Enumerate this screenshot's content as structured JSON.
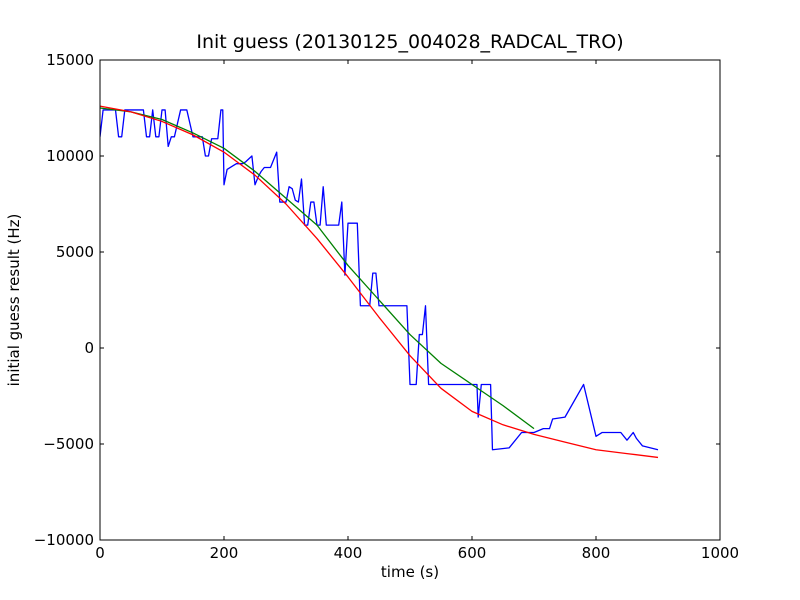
{
  "chart_data": {
    "type": "line",
    "title": "Init guess (20130125_004028_RADCAL_TRO)",
    "xlabel": "time (s)",
    "ylabel": "initial guess result (Hz)",
    "xlim": [
      0,
      1000
    ],
    "ylim": [
      -10000,
      15000
    ],
    "xticks": [
      0,
      200,
      400,
      600,
      800,
      1000
    ],
    "yticks": [
      -10000,
      -5000,
      0,
      5000,
      10000,
      15000
    ],
    "xtick_labels": [
      "0",
      "200",
      "400",
      "600",
      "800",
      "1000"
    ],
    "ytick_labels": [
      "−10000",
      "−5000",
      "0",
      "5000",
      "10000",
      "15000"
    ],
    "grid": false,
    "series": [
      {
        "color": "#0000ff",
        "x": [
          0,
          5,
          25,
          30,
          35,
          40,
          45,
          65,
          70,
          75,
          80,
          85,
          90,
          95,
          100,
          105,
          110,
          115,
          120,
          130,
          140,
          150,
          155,
          165,
          170,
          175,
          180,
          185,
          190,
          195,
          198,
          200,
          205,
          215,
          220,
          230,
          235,
          245,
          250,
          255,
          260,
          265,
          270,
          275,
          285,
          290,
          295,
          300,
          305,
          310,
          315,
          320,
          325,
          330,
          335,
          340,
          345,
          350,
          355,
          360,
          365,
          370,
          375,
          380,
          385,
          390,
          395,
          400,
          405,
          410,
          415,
          420,
          425,
          430,
          435,
          440,
          445,
          450,
          455,
          460,
          465,
          470,
          475,
          480,
          495,
          500,
          505,
          510,
          515,
          520,
          525,
          530,
          555,
          575,
          600,
          605,
          608,
          610,
          615,
          630,
          633,
          660,
          680,
          700,
          715,
          725,
          730,
          750,
          780,
          800,
          810,
          835,
          840,
          850,
          860,
          865,
          875,
          900
        ],
        "y": [
          11000,
          12400,
          12400,
          11000,
          11000,
          12400,
          12400,
          12400,
          12400,
          11000,
          11000,
          12400,
          11000,
          11000,
          12400,
          12400,
          10500,
          11000,
          11000,
          12400,
          12400,
          11000,
          11000,
          11000,
          10000,
          10000,
          10900,
          10900,
          10900,
          12400,
          12400,
          8500,
          9300,
          9500,
          9600,
          9600,
          9700,
          10000,
          8500,
          8900,
          9200,
          9400,
          9400,
          9400,
          10200,
          7600,
          7600,
          7600,
          8400,
          8300,
          7700,
          7600,
          8800,
          6400,
          6400,
          7600,
          7600,
          6400,
          6400,
          8400,
          6400,
          6400,
          6400,
          6400,
          6400,
          7600,
          3800,
          6500,
          6500,
          6500,
          6500,
          2200,
          2200,
          2200,
          2200,
          3900,
          3900,
          2200,
          2200,
          2200,
          2200,
          2200,
          2200,
          2200,
          2200,
          -1900,
          -1900,
          -1900,
          700,
          700,
          2200,
          -1900,
          -1900,
          -1900,
          -1900,
          -1900,
          -1900,
          -3600,
          -1900,
          -1900,
          -5300,
          -5200,
          -4400,
          -4400,
          -4200,
          -4200,
          -3700,
          -3600,
          -1900,
          -4600,
          -4400,
          -4400,
          -4400,
          -4800,
          -4400,
          -4700,
          -5100,
          -5300
        ]
      },
      {
        "color": "#008000",
        "x": [
          0,
          50,
          100,
          150,
          200,
          250,
          300,
          350,
          400,
          450,
          500,
          550,
          600,
          650,
          700
        ],
        "y": [
          12500,
          12300,
          11900,
          11200,
          10400,
          9200,
          7800,
          6400,
          4300,
          2500,
          700,
          -800,
          -1900,
          -3000,
          -4200
        ]
      },
      {
        "color": "#ff0000",
        "x": [
          0,
          50,
          100,
          150,
          200,
          250,
          300,
          350,
          400,
          450,
          500,
          550,
          600,
          650,
          700,
          750,
          800,
          850,
          900
        ],
        "y": [
          12600,
          12300,
          11800,
          11100,
          10200,
          9000,
          7500,
          5700,
          3700,
          1600,
          -400,
          -2100,
          -3300,
          -4000,
          -4500,
          -4900,
          -5300,
          -5500,
          -5700
        ]
      }
    ]
  }
}
